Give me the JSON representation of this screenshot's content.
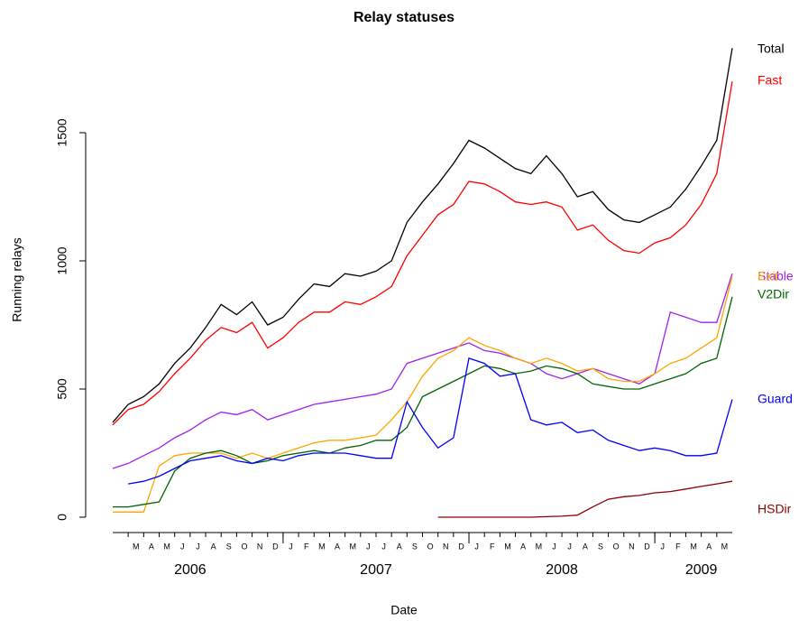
{
  "chart_data": {
    "type": "line",
    "title": "Relay statuses",
    "x_label": "Date",
    "y_label": "Running relays",
    "x": [
      "2006-02",
      "2006-03",
      "2006-04",
      "2006-05",
      "2006-06",
      "2006-07",
      "2006-08",
      "2006-09",
      "2006-10",
      "2006-11",
      "2006-12",
      "2007-01",
      "2007-02",
      "2007-03",
      "2007-04",
      "2007-05",
      "2007-06",
      "2007-07",
      "2007-08",
      "2007-09",
      "2007-10",
      "2007-11",
      "2007-12",
      "2008-01",
      "2008-02",
      "2008-03",
      "2008-04",
      "2008-05",
      "2008-06",
      "2008-07",
      "2008-08",
      "2008-09",
      "2008-10",
      "2008-11",
      "2008-12",
      "2009-01",
      "2009-02",
      "2009-03",
      "2009-04",
      "2009-05",
      "2009-06"
    ],
    "xlim": [
      "2006-02",
      "2009-06"
    ],
    "xticks": [
      {
        "value": "2006-03",
        "label": "M"
      },
      {
        "value": "2006-04",
        "label": "A"
      },
      {
        "value": "2006-05",
        "label": "M"
      },
      {
        "value": "2006-06",
        "label": "J"
      },
      {
        "value": "2006-07",
        "label": "J"
      },
      {
        "value": "2006-08",
        "label": "A"
      },
      {
        "value": "2006-09",
        "label": "S"
      },
      {
        "value": "2006-10",
        "label": "O"
      },
      {
        "value": "2006-11",
        "label": "N"
      },
      {
        "value": "2006-12",
        "label": "D"
      },
      {
        "value": "2007-01",
        "label": "J"
      },
      {
        "value": "2007-02",
        "label": "F"
      },
      {
        "value": "2007-03",
        "label": "M"
      },
      {
        "value": "2007-04",
        "label": "A"
      },
      {
        "value": "2007-05",
        "label": "M"
      },
      {
        "value": "2007-06",
        "label": "J"
      },
      {
        "value": "2007-07",
        "label": "J"
      },
      {
        "value": "2007-08",
        "label": "A"
      },
      {
        "value": "2007-09",
        "label": "S"
      },
      {
        "value": "2007-10",
        "label": "O"
      },
      {
        "value": "2007-11",
        "label": "N"
      },
      {
        "value": "2007-12",
        "label": "D"
      },
      {
        "value": "2008-01",
        "label": "J"
      },
      {
        "value": "2008-02",
        "label": "F"
      },
      {
        "value": "2008-03",
        "label": "M"
      },
      {
        "value": "2008-04",
        "label": "A"
      },
      {
        "value": "2008-05",
        "label": "M"
      },
      {
        "value": "2008-06",
        "label": "J"
      },
      {
        "value": "2008-07",
        "label": "J"
      },
      {
        "value": "2008-08",
        "label": "A"
      },
      {
        "value": "2008-09",
        "label": "S"
      },
      {
        "value": "2008-10",
        "label": "O"
      },
      {
        "value": "2008-11",
        "label": "N"
      },
      {
        "value": "2008-12",
        "label": "D"
      },
      {
        "value": "2009-01",
        "label": "J"
      },
      {
        "value": "2009-02",
        "label": "F"
      },
      {
        "value": "2009-03",
        "label": "M"
      },
      {
        "value": "2009-04",
        "label": "A"
      },
      {
        "value": "2009-05",
        "label": "M"
      }
    ],
    "year_ticks": [
      "2007-01",
      "2008-01",
      "2009-01"
    ],
    "year_labels": [
      {
        "value": "2006-07",
        "label": "2006"
      },
      {
        "value": "2007-07",
        "label": "2007"
      },
      {
        "value": "2008-07",
        "label": "2008"
      },
      {
        "value": "2009-04",
        "label": "2009"
      }
    ],
    "ylim": [
      0,
      1850
    ],
    "yticks": [
      0,
      500,
      1000,
      1500
    ],
    "series": [
      {
        "name": "Total",
        "color": "#000000",
        "values": [
          370,
          440,
          470,
          520,
          600,
          660,
          740,
          830,
          790,
          840,
          750,
          780,
          850,
          910,
          900,
          950,
          940,
          960,
          1000,
          1150,
          1230,
          1300,
          1380,
          1470,
          1440,
          1400,
          1360,
          1340,
          1410,
          1340,
          1250,
          1270,
          1200,
          1160,
          1150,
          1180,
          1210,
          1280,
          1370,
          1470,
          1830
        ]
      },
      {
        "name": "Fast",
        "color": "#ff0000",
        "values": [
          360,
          420,
          440,
          490,
          560,
          620,
          690,
          740,
          720,
          760,
          660,
          700,
          760,
          800,
          800,
          840,
          830,
          860,
          900,
          1020,
          1100,
          1180,
          1220,
          1310,
          1300,
          1270,
          1230,
          1220,
          1230,
          1210,
          1120,
          1140,
          1080,
          1040,
          1030,
          1070,
          1090,
          1140,
          1220,
          1340,
          1700
        ]
      },
      {
        "name": "Stable",
        "color": "#a020f0",
        "values": [
          190,
          210,
          240,
          270,
          310,
          340,
          380,
          410,
          400,
          420,
          380,
          400,
          420,
          440,
          450,
          460,
          470,
          480,
          500,
          600,
          620,
          640,
          660,
          680,
          650,
          640,
          620,
          600,
          560,
          540,
          560,
          580,
          560,
          540,
          520,
          560,
          800,
          780,
          760,
          760,
          950
        ]
      },
      {
        "name": "Exit",
        "color": "#ffa500",
        "values": [
          20,
          20,
          20,
          200,
          240,
          250,
          250,
          250,
          230,
          250,
          230,
          250,
          270,
          290,
          300,
          300,
          310,
          320,
          380,
          450,
          550,
          620,
          650,
          700,
          670,
          650,
          620,
          600,
          620,
          600,
          570,
          580,
          540,
          530,
          530,
          560,
          600,
          620,
          660,
          700,
          940
        ]
      },
      {
        "name": "V2Dir",
        "color": "#006400",
        "values": [
          40,
          40,
          50,
          60,
          180,
          230,
          250,
          260,
          240,
          210,
          220,
          240,
          250,
          260,
          250,
          270,
          280,
          300,
          300,
          350,
          470,
          500,
          530,
          560,
          590,
          580,
          560,
          570,
          590,
          580,
          560,
          520,
          510,
          500,
          500,
          520,
          540,
          560,
          600,
          620,
          860
        ]
      },
      {
        "name": "Guard",
        "color": "#0000ff",
        "values": [
          null,
          130,
          140,
          160,
          190,
          220,
          230,
          240,
          220,
          210,
          230,
          220,
          240,
          250,
          250,
          250,
          240,
          230,
          230,
          450,
          350,
          270,
          310,
          620,
          600,
          550,
          560,
          380,
          360,
          370,
          330,
          340,
          300,
          280,
          260,
          270,
          260,
          240,
          240,
          250,
          460
        ]
      },
      {
        "name": "HSDir",
        "color": "#8b0000",
        "values": [
          null,
          null,
          null,
          null,
          null,
          null,
          null,
          null,
          null,
          null,
          null,
          null,
          null,
          null,
          null,
          null,
          null,
          null,
          null,
          null,
          null,
          0,
          0,
          0,
          0,
          0,
          0,
          0,
          2,
          4,
          8,
          40,
          70,
          80,
          85,
          95,
          100,
          110,
          120,
          130,
          140
        ]
      }
    ]
  }
}
